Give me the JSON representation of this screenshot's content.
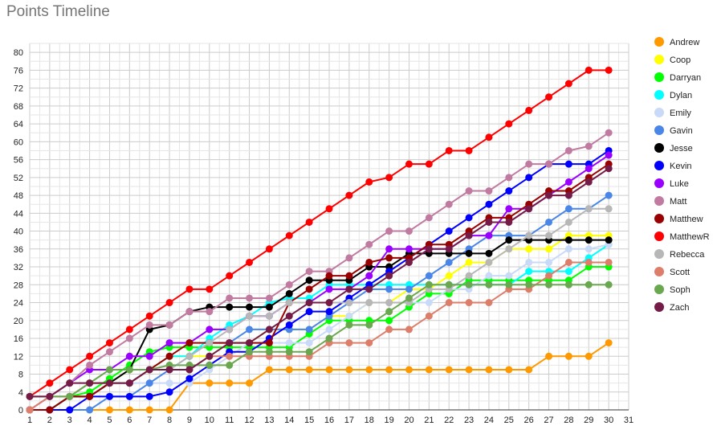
{
  "chart_data": {
    "type": "line",
    "title": "Points Timeline",
    "xlabel": "",
    "ylabel": "",
    "x": [
      1,
      2,
      3,
      4,
      5,
      6,
      7,
      8,
      9,
      10,
      11,
      12,
      13,
      14,
      15,
      16,
      17,
      18,
      19,
      20,
      21,
      22,
      23,
      24,
      25,
      26,
      27,
      28,
      29,
      30
    ],
    "xlim": [
      1,
      31
    ],
    "ylim": [
      0,
      82
    ],
    "xticks": [
      1,
      2,
      3,
      4,
      5,
      6,
      7,
      8,
      9,
      10,
      11,
      12,
      13,
      14,
      15,
      16,
      17,
      18,
      19,
      20,
      21,
      22,
      23,
      24,
      25,
      26,
      27,
      28,
      29,
      30,
      31
    ],
    "yticks": [
      0,
      4,
      8,
      12,
      16,
      20,
      24,
      28,
      32,
      36,
      40,
      44,
      48,
      52,
      56,
      60,
      64,
      68,
      72,
      76,
      80
    ],
    "grid": true,
    "legend": "right",
    "series": [
      {
        "name": "Andrew",
        "color": "#ff9900",
        "values": [
          0,
          0,
          0,
          0,
          0,
          0,
          0,
          0,
          6,
          6,
          6,
          6,
          9,
          9,
          9,
          9,
          9,
          9,
          9,
          9,
          9,
          9,
          9,
          9,
          9,
          9,
          12,
          12,
          12,
          15
        ]
      },
      {
        "name": "Coop",
        "color": "#ffff00",
        "values": [
          0,
          0,
          3,
          3,
          6,
          9,
          9,
          12,
          12,
          12,
          15,
          15,
          18,
          18,
          18,
          21,
          21,
          24,
          24,
          27,
          27,
          30,
          33,
          33,
          36,
          36,
          36,
          39,
          39,
          39
        ]
      },
      {
        "name": "Darryan",
        "color": "#00ff00",
        "values": [
          0,
          0,
          3,
          4,
          7,
          10,
          13,
          14,
          14,
          14,
          14,
          14,
          14,
          14,
          17,
          20,
          20,
          20,
          20,
          23,
          26,
          26,
          29,
          29,
          29,
          29,
          29,
          29,
          32,
          32
        ]
      },
      {
        "name": "Dylan",
        "color": "#00ffff",
        "values": [
          0,
          0,
          3,
          3,
          6,
          6,
          9,
          12,
          12,
          16,
          19,
          21,
          24,
          25,
          25,
          28,
          28,
          28,
          28,
          28,
          28,
          28,
          28,
          28,
          28,
          31,
          31,
          31,
          34,
          37
        ]
      },
      {
        "name": "Emily",
        "color": "#c9daf8",
        "values": [
          0,
          0,
          3,
          3,
          6,
          6,
          6,
          6,
          6,
          9,
          12,
          15,
          15,
          15,
          15,
          18,
          21,
          24,
          24,
          24,
          24,
          27,
          27,
          30,
          30,
          33,
          33,
          36,
          36,
          37
        ]
      },
      {
        "name": "Gavin",
        "color": "#4a86e8",
        "values": [
          0,
          0,
          0,
          0,
          3,
          3,
          6,
          9,
          12,
          15,
          15,
          18,
          18,
          18,
          18,
          21,
          24,
          27,
          27,
          27,
          30,
          33,
          36,
          39,
          39,
          39,
          42,
          45,
          45,
          48
        ]
      },
      {
        "name": "Jesse",
        "color": "#000000",
        "values": [
          0,
          0,
          3,
          3,
          6,
          9,
          18,
          19,
          22,
          23,
          23,
          23,
          23,
          26,
          29,
          29,
          29,
          32,
          32,
          35,
          35,
          35,
          35,
          35,
          38,
          38,
          38,
          38,
          38,
          38
        ]
      },
      {
        "name": "Kevin",
        "color": "#0000ff",
        "values": [
          0,
          0,
          0,
          3,
          3,
          3,
          3,
          4,
          7,
          10,
          13,
          13,
          16,
          19,
          22,
          22,
          25,
          28,
          31,
          34,
          37,
          40,
          43,
          46,
          49,
          52,
          55,
          55,
          55,
          58
        ]
      },
      {
        "name": "Luke",
        "color": "#9900ff",
        "values": [
          0,
          3,
          6,
          9,
          9,
          12,
          12,
          15,
          15,
          18,
          18,
          21,
          21,
          24,
          24,
          27,
          27,
          30,
          36,
          36,
          36,
          36,
          39,
          39,
          45,
          45,
          48,
          51,
          54,
          57
        ]
      },
      {
        "name": "Matt",
        "color": "#c27ba0",
        "values": [
          0,
          3,
          6,
          10,
          13,
          16,
          19,
          19,
          22,
          22,
          25,
          25,
          25,
          28,
          31,
          31,
          34,
          37,
          40,
          40,
          43,
          46,
          49,
          49,
          52,
          55,
          55,
          58,
          59,
          62
        ]
      },
      {
        "name": "Matthew",
        "color": "#990000",
        "values": [
          0,
          0,
          3,
          3,
          6,
          6,
          9,
          12,
          15,
          15,
          15,
          15,
          15,
          24,
          27,
          30,
          30,
          33,
          34,
          34,
          37,
          37,
          40,
          43,
          43,
          46,
          49,
          49,
          52,
          55
        ]
      },
      {
        "name": "MatthewR",
        "color": "#ff0000",
        "values": [
          3,
          6,
          9,
          12,
          15,
          18,
          21,
          24,
          27,
          27,
          30,
          33,
          36,
          39,
          42,
          45,
          48,
          51,
          52,
          55,
          55,
          58,
          58,
          61,
          64,
          67,
          70,
          73,
          76,
          76
        ]
      },
      {
        "name": "Rebecca",
        "color": "#b7b7b7",
        "values": [
          0,
          3,
          3,
          6,
          6,
          6,
          9,
          9,
          12,
          15,
          18,
          21,
          21,
          24,
          24,
          24,
          24,
          24,
          24,
          24,
          27,
          27,
          30,
          33,
          36,
          39,
          39,
          42,
          45,
          45
        ]
      },
      {
        "name": "Scott",
        "color": "#dd7e6b",
        "values": [
          0,
          3,
          3,
          6,
          6,
          6,
          9,
          9,
          9,
          12,
          12,
          12,
          12,
          12,
          12,
          15,
          15,
          15,
          18,
          18,
          21,
          24,
          24,
          24,
          27,
          27,
          30,
          33,
          33,
          33
        ]
      },
      {
        "name": "Soph",
        "color": "#6aa84f",
        "values": [
          3,
          3,
          3,
          6,
          9,
          9,
          9,
          10,
          10,
          10,
          10,
          13,
          13,
          13,
          13,
          16,
          19,
          19,
          22,
          25,
          28,
          28,
          28,
          28,
          28,
          28,
          28,
          28,
          28,
          28
        ]
      },
      {
        "name": "Zach",
        "color": "#741b47",
        "values": [
          3,
          3,
          6,
          6,
          6,
          6,
          9,
          9,
          9,
          12,
          15,
          15,
          18,
          21,
          24,
          24,
          27,
          27,
          30,
          33,
          36,
          36,
          39,
          42,
          42,
          45,
          48,
          48,
          51,
          54
        ]
      }
    ]
  }
}
